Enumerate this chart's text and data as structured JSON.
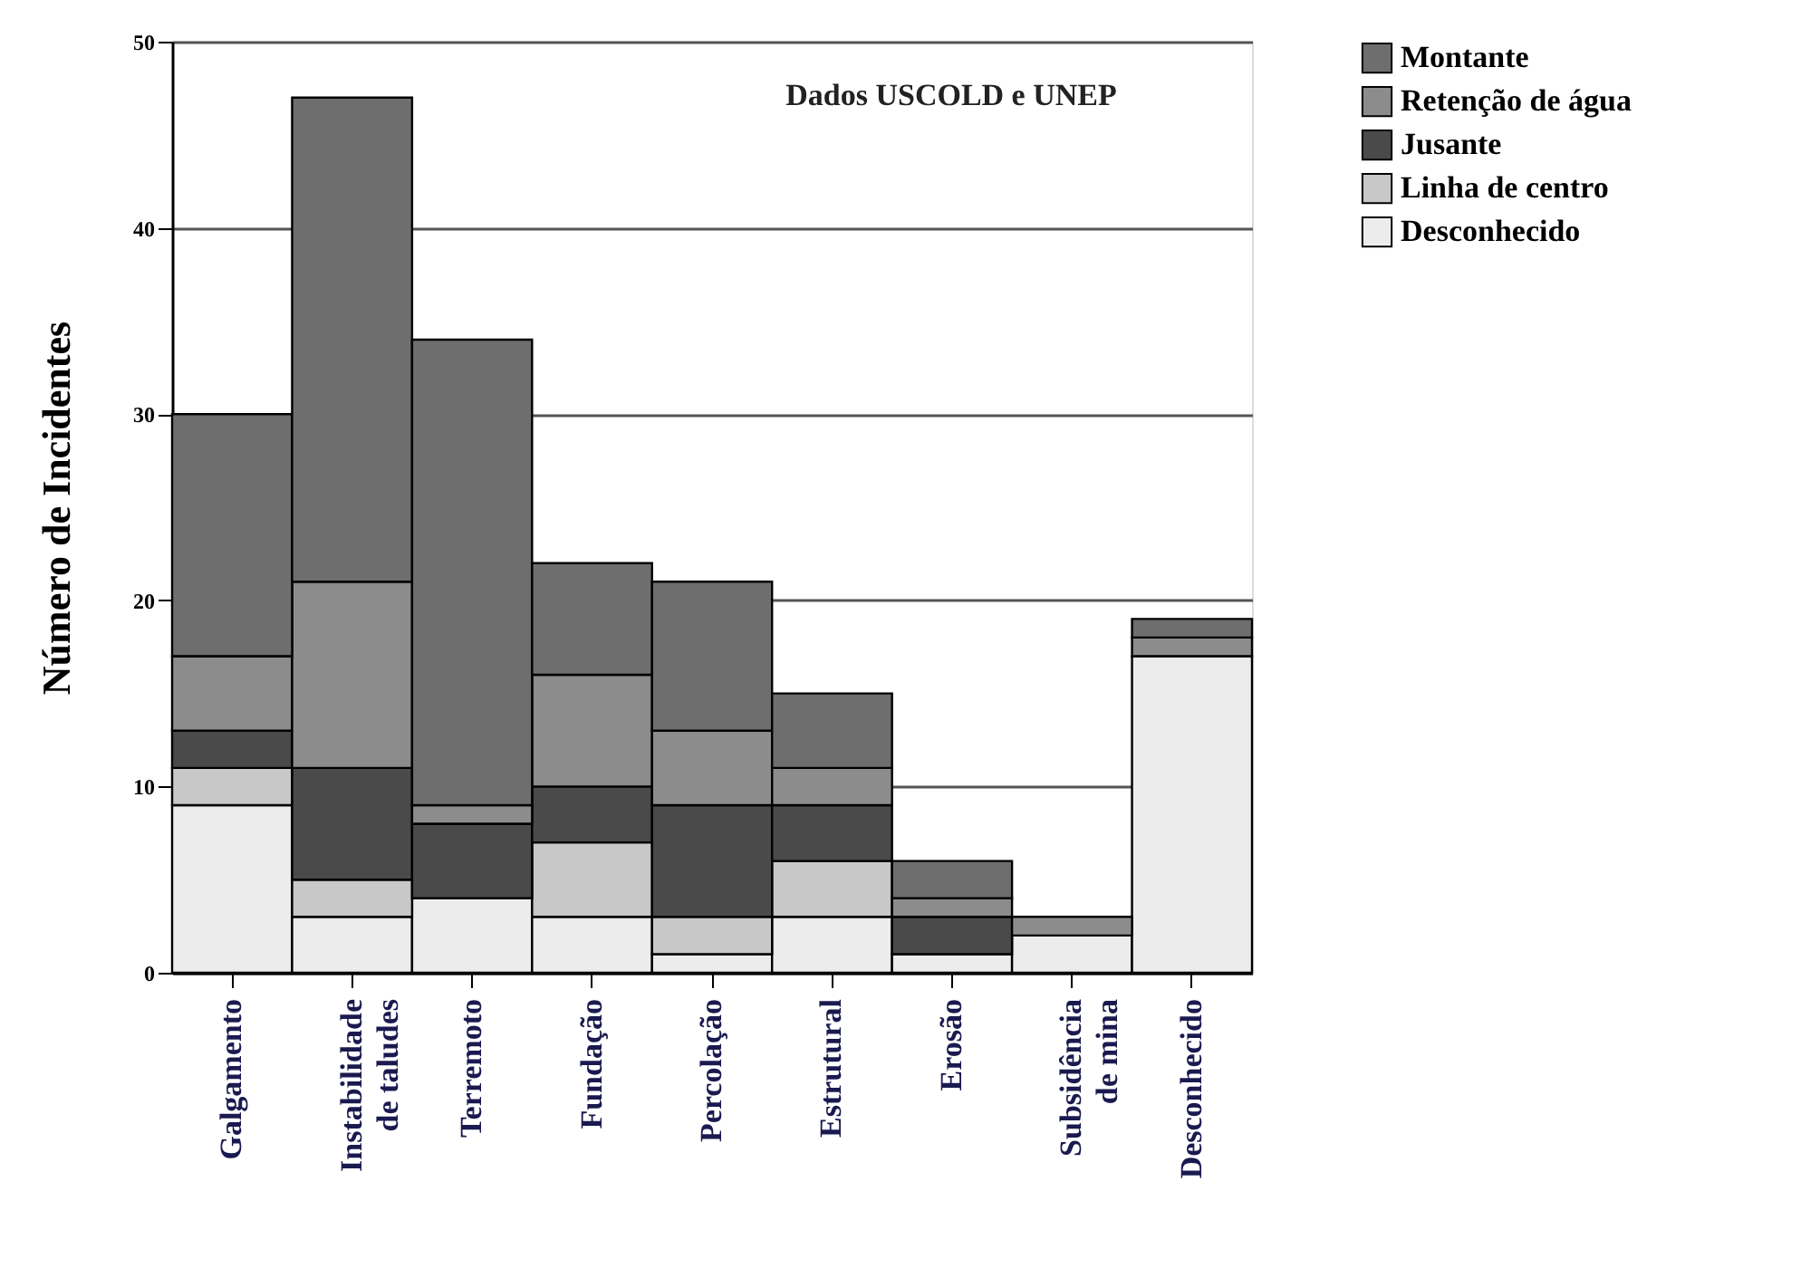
{
  "chart_data": {
    "type": "bar",
    "stacked": true,
    "ylabel": "Número de Incidentes",
    "annotations": [
      "Dados USCOLD e UNEP"
    ],
    "categories": [
      "Galgamento",
      "Instabilidade de taludes",
      "Terremoto",
      "Fundação",
      "Percolação",
      "Estrutural",
      "Erosão",
      "Subsidência de mina",
      "Desconhecido"
    ],
    "series": [
      {
        "name": "Desconhecido",
        "color": "#ececec",
        "values": [
          9,
          3,
          4,
          3,
          1,
          3,
          1,
          2,
          17
        ]
      },
      {
        "name": "Linha de centro",
        "color": "#c8c8c8",
        "values": [
          2,
          2,
          0,
          4,
          2,
          3,
          0,
          0,
          0
        ]
      },
      {
        "name": "Jusante",
        "color": "#4a4a4a",
        "values": [
          2,
          6,
          4,
          3,
          6,
          3,
          2,
          0,
          0
        ]
      },
      {
        "name": "Retenção de água",
        "color": "#8c8c8c",
        "values": [
          4,
          10,
          1,
          6,
          4,
          2,
          1,
          1,
          1
        ]
      },
      {
        "name": "Montante",
        "color": "#6e6e6e",
        "values": [
          13,
          26,
          25,
          6,
          8,
          4,
          2,
          0,
          1
        ]
      }
    ],
    "ylim": [
      0,
      50
    ],
    "yticks": [
      0,
      10,
      20,
      30,
      40,
      50
    ],
    "grid": "y",
    "legend": "right"
  }
}
